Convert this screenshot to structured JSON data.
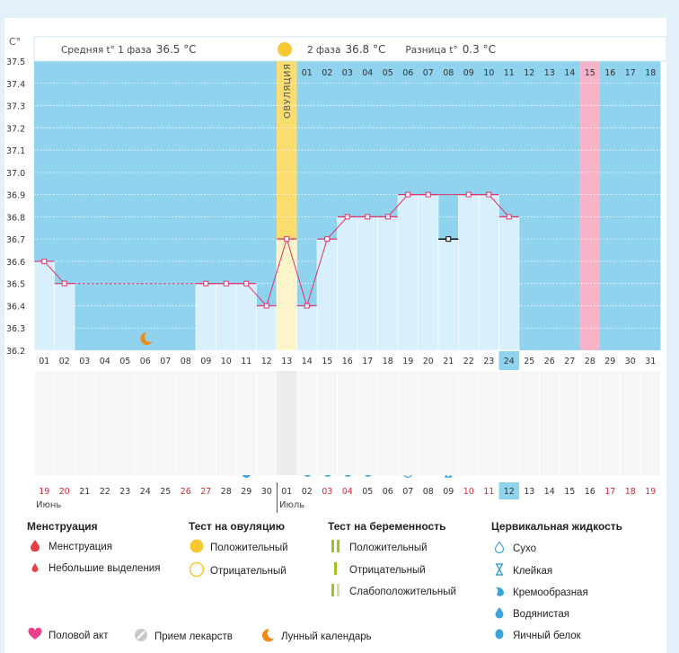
{
  "chart_data": {
    "type": "line",
    "axis_unit": "C°",
    "ylim": [
      36.2,
      37.5
    ],
    "y_ticks": [
      "37.5",
      "37.4",
      "37.3",
      "37.2",
      "37.1",
      "37.0",
      "36.9",
      "36.8",
      "36.7",
      "36.6",
      "36.5",
      "36.4",
      "36.3",
      "36.2"
    ],
    "x": [
      "01",
      "02",
      "03",
      "04",
      "05",
      "06",
      "07",
      "08",
      "09",
      "10",
      "11",
      "12",
      "13",
      "14",
      "15",
      "16",
      "17",
      "18",
      "19",
      "20",
      "21",
      "22",
      "23",
      "24",
      "25",
      "26",
      "27",
      "28",
      "29",
      "30",
      "31"
    ],
    "series": [
      {
        "name": "Базальная температура",
        "values": [
          36.6,
          36.5,
          null,
          null,
          null,
          null,
          null,
          null,
          36.5,
          36.5,
          36.5,
          36.4,
          36.7,
          36.4,
          36.7,
          36.8,
          36.8,
          36.8,
          36.9,
          36.9,
          36.7,
          36.9,
          36.9,
          36.8,
          null,
          null,
          null,
          null,
          null,
          null,
          null
        ],
        "excluded_day": "21",
        "interpolated_between": [
          "02",
          "09"
        ]
      }
    ],
    "phase1_text": "Средняя t° 1 фаза",
    "phase1_value": "36.5 °C",
    "phase2_text": "2 фаза",
    "phase2_value": "36.8 °C",
    "diff_text": "Разница t°",
    "diff_value": "0.3 °C",
    "ovulation_label": "ОВУЛЯЦИЯ",
    "ovulation_day": "13",
    "luteal_days": [
      "01",
      "02",
      "03",
      "04",
      "05",
      "06",
      "07",
      "08",
      "09",
      "10",
      "11",
      "12",
      "13",
      "14",
      "15",
      "16",
      "17",
      "18"
    ],
    "highlight_day": "15",
    "current_day": "24",
    "current_cycle_day": "12",
    "calendar_days": [
      "19",
      "20",
      "21",
      "22",
      "23",
      "24",
      "25",
      "26",
      "27",
      "28",
      "29",
      "30",
      "01",
      "02",
      "03",
      "04",
      "05",
      "06",
      "07",
      "08",
      "09",
      "10",
      "11",
      "12",
      "13",
      "14",
      "15",
      "16",
      "17",
      "18",
      "19"
    ],
    "calendar_red": [
      "19",
      "20",
      "26",
      "27",
      "03",
      "04",
      "10",
      "11",
      "17",
      "18"
    ],
    "month_start": "Июнь",
    "month_end": "Июль",
    "menstruation_days": [
      "01",
      "02"
    ],
    "ovulation_test_negative": [
      "11"
    ],
    "ovulation_test_positive": [
      "12",
      "13"
    ],
    "intercourse_days": [
      "04",
      "06",
      "09",
      "11",
      "13",
      "19",
      "20",
      "24"
    ],
    "moon_day": "06",
    "cervical": {
      "watery": [
        "11"
      ],
      "creamy": [
        "14",
        "15",
        "16",
        "17"
      ],
      "dry": [
        "19"
      ],
      "sticky": [
        "21"
      ]
    }
  },
  "legend": {
    "menstruation": {
      "title": "Менструация",
      "items": [
        "Менструация",
        "Небольшие выделения"
      ]
    },
    "ovulation_test": {
      "title": "Тест на овуляцию",
      "items": [
        "Положительный",
        "Отрицательный"
      ]
    },
    "pregnancy_test": {
      "title": "Тест на беременность",
      "items": [
        "Положительный",
        "Отрицательный",
        "Слабоположительный"
      ]
    },
    "cervical_fluid": {
      "title": "Цервикальная жидкость",
      "items": [
        "Сухо",
        "Клейкая",
        "Кремообразная",
        "Водянистая",
        "Яичный белок"
      ]
    },
    "bottom": [
      "Половой акт",
      "Прием лекарств",
      "Лунный календарь"
    ]
  },
  "colors": {
    "plot_bg": "#8fd3ef",
    "bar": "#d7f0fb",
    "ovulation": "#fbdc6e",
    "highlight": "#f7b3c8",
    "line": "#e0306b",
    "menstruation": "#e8404a",
    "test": "#f6c932",
    "heart": "#e9418a",
    "cervical": "#3aa3db",
    "moon": "#f08a14",
    "preg_test": "#9bc423",
    "calendar_red": "#d6283a"
  }
}
